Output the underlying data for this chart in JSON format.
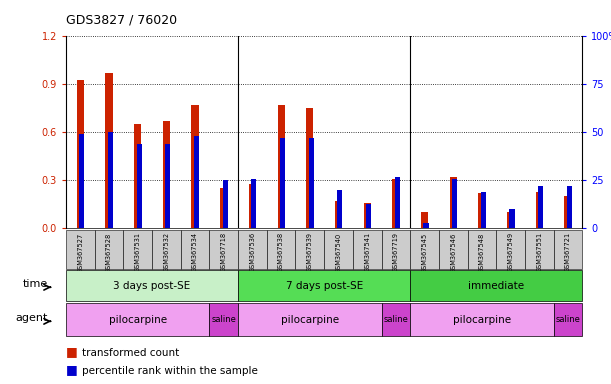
{
  "title": "GDS3827 / 76020",
  "samples": [
    "GSM367527",
    "GSM367528",
    "GSM367531",
    "GSM367532",
    "GSM367534",
    "GSM367718",
    "GSM367536",
    "GSM367538",
    "GSM367539",
    "GSM367540",
    "GSM367541",
    "GSM367719",
    "GSM367545",
    "GSM367546",
    "GSM367548",
    "GSM367549",
    "GSM367551",
    "GSM367721"
  ],
  "red_values": [
    0.93,
    0.97,
    0.65,
    0.67,
    0.77,
    0.25,
    0.28,
    0.77,
    0.75,
    0.17,
    0.16,
    0.31,
    0.1,
    0.32,
    0.22,
    0.1,
    0.23,
    0.2
  ],
  "blue_values_pct": [
    49,
    50,
    44,
    44,
    48,
    25,
    26,
    47,
    47,
    20,
    13,
    27,
    3,
    26,
    19,
    10,
    22,
    22
  ],
  "ylim_left": [
    0,
    1.2
  ],
  "ylim_right": [
    0,
    100
  ],
  "yticks_left": [
    0,
    0.3,
    0.6,
    0.9,
    1.2
  ],
  "yticks_right": [
    0,
    25,
    50,
    75,
    100
  ],
  "time_groups": [
    {
      "label": "3 days post-SE",
      "start": 0,
      "end": 6,
      "color": "#c8f0c8"
    },
    {
      "label": "7 days post-SE",
      "start": 6,
      "end": 12,
      "color": "#55dd55"
    },
    {
      "label": "immediate",
      "start": 12,
      "end": 18,
      "color": "#44cc44"
    }
  ],
  "agent_groups": [
    {
      "label": "pilocarpine",
      "start": 0,
      "end": 5,
      "color": "#f0a0f0"
    },
    {
      "label": "saline",
      "start": 5,
      "end": 6,
      "color": "#cc44cc"
    },
    {
      "label": "pilocarpine",
      "start": 6,
      "end": 11,
      "color": "#f0a0f0"
    },
    {
      "label": "saline",
      "start": 11,
      "end": 12,
      "color": "#cc44cc"
    },
    {
      "label": "pilocarpine",
      "start": 12,
      "end": 17,
      "color": "#f0a0f0"
    },
    {
      "label": "saline",
      "start": 17,
      "end": 18,
      "color": "#cc44cc"
    }
  ],
  "bar_color_red": "#cc2200",
  "bar_color_blue": "#0000cc",
  "legend_items": [
    {
      "color": "#cc2200",
      "label": "transformed count"
    },
    {
      "color": "#0000cc",
      "label": "percentile rank within the sample"
    }
  ]
}
